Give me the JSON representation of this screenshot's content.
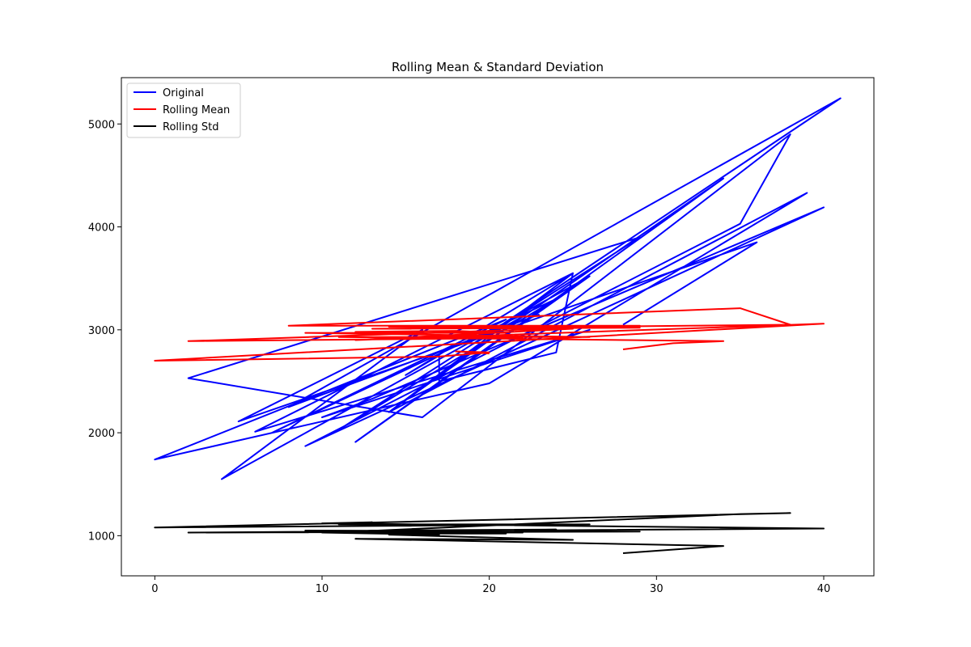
{
  "chart_data": {
    "type": "line",
    "title": "Rolling Mean & Standard Deviation",
    "xlabel": "",
    "ylabel": "",
    "xlim": [
      -2,
      43
    ],
    "ylim": [
      610,
      5450
    ],
    "xticks": [
      0,
      10,
      20,
      30,
      40
    ],
    "yticks": [
      1000,
      2000,
      3000,
      4000,
      5000
    ],
    "grid": false,
    "legend_position": "top-left",
    "series": [
      {
        "name": "Original",
        "color": "#0000ff",
        "points": [
          [
            28,
            3050
          ],
          [
            36,
            3850
          ],
          [
            5,
            2110
          ],
          [
            16,
            3000
          ],
          [
            4,
            1550
          ],
          [
            26,
            3520
          ],
          [
            12,
            1910
          ],
          [
            34,
            4470
          ],
          [
            18,
            2680
          ],
          [
            14,
            2200
          ],
          [
            39,
            4330
          ],
          [
            20,
            2480
          ],
          [
            0,
            1740
          ],
          [
            21,
            3100
          ],
          [
            7,
            2000
          ],
          [
            24,
            3300
          ],
          [
            11,
            2030
          ],
          [
            29,
            3900
          ],
          [
            2,
            2530
          ],
          [
            16,
            2150
          ],
          [
            38,
            4900
          ],
          [
            35,
            4030
          ],
          [
            9,
            1870
          ],
          [
            40,
            4190
          ],
          [
            13,
            2330
          ],
          [
            10,
            2150
          ],
          [
            26,
            3000
          ],
          [
            6,
            2010
          ],
          [
            25,
            3550
          ],
          [
            15,
            2560
          ],
          [
            17,
            2750
          ],
          [
            17,
            2500
          ],
          [
            24,
            2780
          ],
          [
            25,
            3550
          ],
          [
            14,
            2200
          ],
          [
            22,
            3130
          ],
          [
            19,
            2860
          ],
          [
            41,
            5250
          ],
          [
            8,
            2250
          ],
          [
            23,
            3150
          ]
        ]
      },
      {
        "name": "Rolling Mean",
        "color": "#ff0000",
        "points": [
          [
            28,
            2810
          ],
          [
            31,
            2870
          ],
          [
            34,
            2890
          ],
          [
            11,
            2930
          ],
          [
            26,
            2930
          ],
          [
            9,
            2970
          ],
          [
            21,
            2970
          ],
          [
            18,
            2990
          ],
          [
            12,
            2980
          ],
          [
            22,
            2920
          ],
          [
            2,
            2890
          ],
          [
            29,
            3040
          ],
          [
            8,
            3040
          ],
          [
            35,
            3210
          ],
          [
            38,
            3050
          ],
          [
            13,
            3010
          ],
          [
            29,
            3020
          ],
          [
            14,
            3030
          ],
          [
            25,
            3010
          ],
          [
            12,
            2900
          ],
          [
            40,
            3060
          ],
          [
            0,
            2700
          ],
          [
            17,
            2740
          ],
          [
            20,
            2780
          ],
          [
            18,
            2790
          ],
          [
            20,
            2770
          ]
        ]
      },
      {
        "name": "Rolling Std",
        "color": "#000000",
        "points": [
          [
            28,
            830
          ],
          [
            34,
            900
          ],
          [
            12,
            970
          ],
          [
            25,
            960
          ],
          [
            14,
            1010
          ],
          [
            17,
            1010
          ],
          [
            10,
            1030
          ],
          [
            13,
            1050
          ],
          [
            24,
            1060
          ],
          [
            11,
            1040
          ],
          [
            9,
            1050
          ],
          [
            29,
            1040
          ],
          [
            2,
            1030
          ],
          [
            40,
            1070
          ],
          [
            10,
            1120
          ],
          [
            13,
            1130
          ],
          [
            11,
            1110
          ],
          [
            26,
            1110
          ],
          [
            0,
            1080
          ],
          [
            38,
            1220
          ],
          [
            35,
            1210
          ],
          [
            12,
            1040
          ],
          [
            22,
            1030
          ],
          [
            9,
            1040
          ],
          [
            21,
            1020
          ],
          [
            16,
            1020
          ]
        ]
      }
    ]
  }
}
